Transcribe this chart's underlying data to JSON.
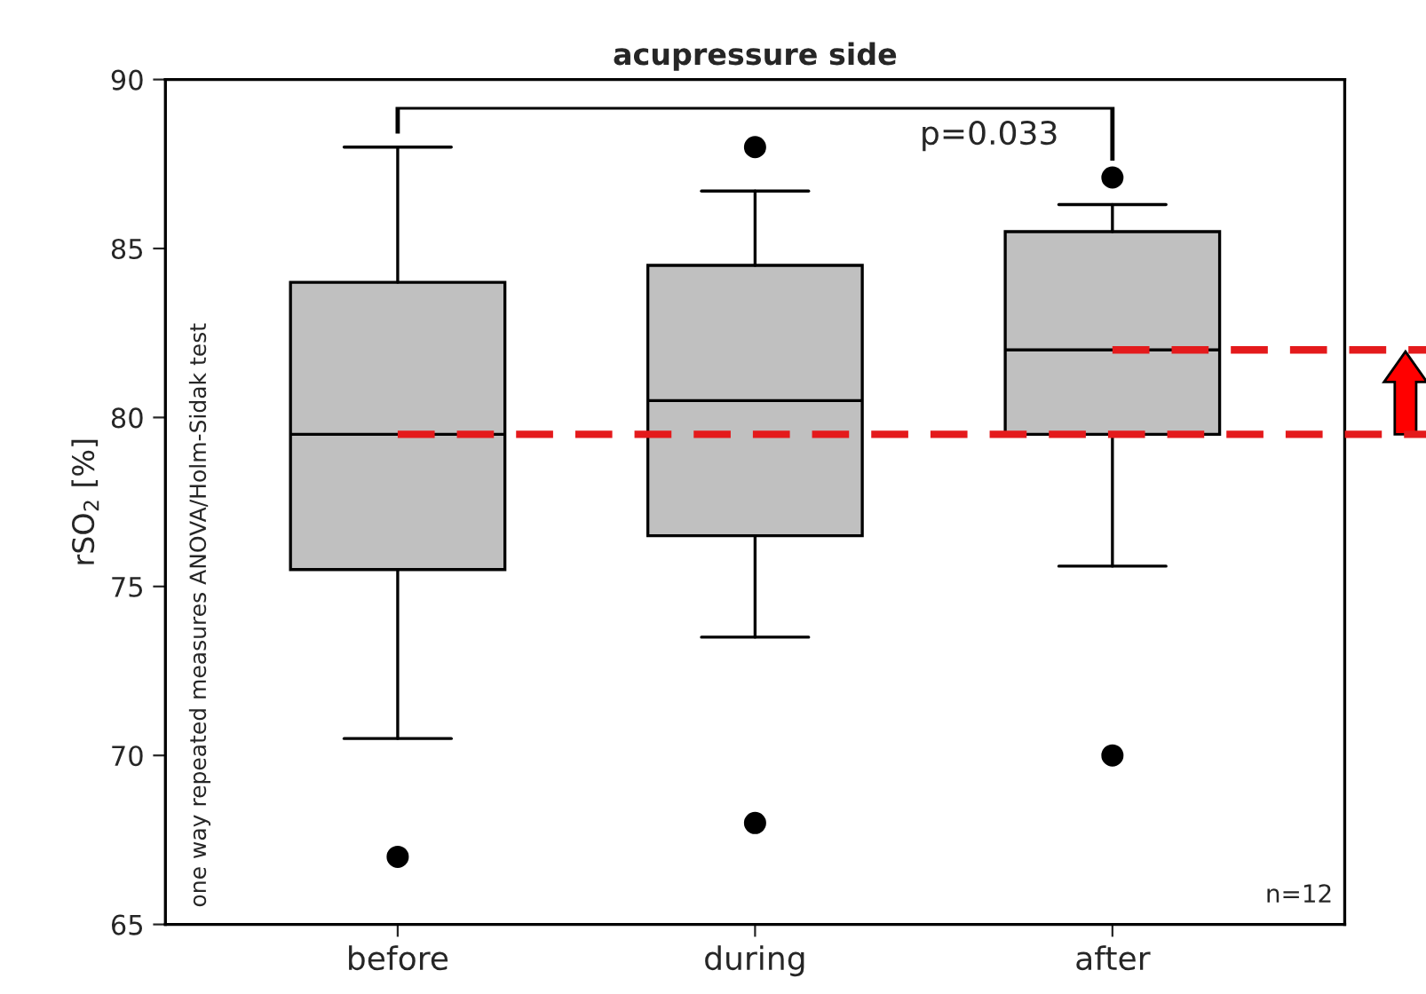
{
  "chart_data": {
    "type": "box",
    "title": "acupressure side",
    "ylabel": "rSO$_{2}$ [%]",
    "categories": [
      "before",
      "during",
      "after"
    ],
    "boxes": [
      {
        "low": 70.5,
        "q1": 75.5,
        "median": 79.5,
        "q3": 84.0,
        "high": 88.0,
        "outliers": [
          67.0
        ]
      },
      {
        "low": 73.5,
        "q1": 76.5,
        "median": 80.5,
        "q3": 84.5,
        "high": 86.7,
        "outliers": [
          88.0,
          68.0
        ]
      },
      {
        "low": 75.6,
        "q1": 79.5,
        "median": 82.0,
        "q3": 85.5,
        "high": 86.3,
        "outliers": [
          87.1,
          70.0
        ]
      }
    ],
    "color": "#c0c0c0",
    "ylim": [
      65,
      90
    ],
    "yticks": [
      65,
      70,
      75,
      80,
      85,
      90
    ],
    "ref_lines": [
      {
        "axis": "y",
        "value": 79.5,
        "color": "#e41a1c",
        "line_style": "dashed"
      },
      {
        "axis": "y",
        "value": 82.0,
        "color": "#e41a1c",
        "line_style": "dashed"
      }
    ],
    "annotations": [
      "p=0.033",
      "n=12",
      "one way repeated measures ANOVA/Holm-Sidak test"
    ],
    "grid": false,
    "legend": false
  }
}
